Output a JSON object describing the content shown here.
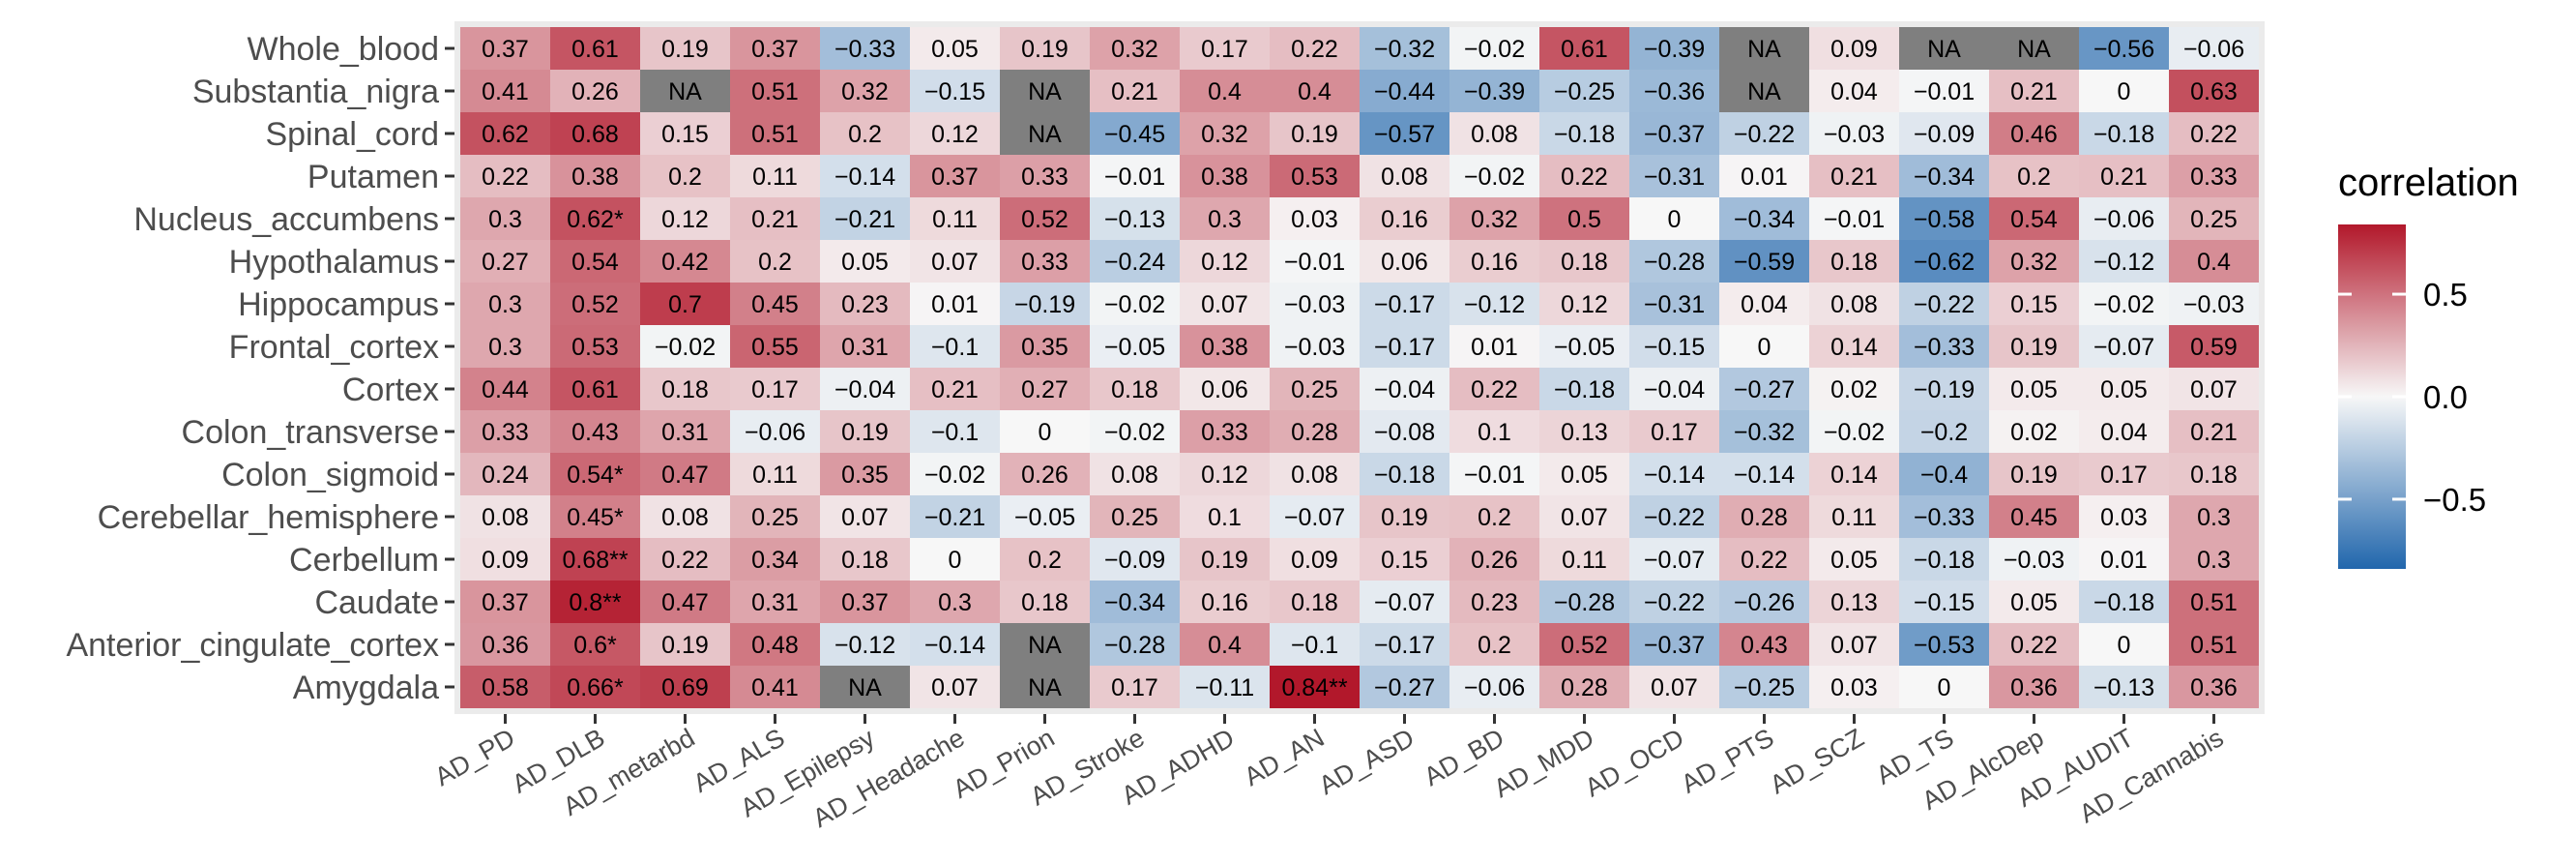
{
  "chart_data": {
    "type": "heatmap",
    "title": "",
    "xlabel": "",
    "ylabel": "",
    "x_categories": [
      "AD_PD",
      "AD_DLB",
      "AD_metarbd",
      "AD_ALS",
      "AD_Epilepsy",
      "AD_Headache",
      "AD_Prion",
      "AD_Stroke",
      "AD_ADHD",
      "AD_AN",
      "AD_ASD",
      "AD_BD",
      "AD_MDD",
      "AD_OCD",
      "AD_PTS",
      "AD_SCZ",
      "AD_TS",
      "AD_AlcDep",
      "AD_AUDIT",
      "AD_Cannabis"
    ],
    "y_categories": [
      "Whole_blood",
      "Substantia_nigra",
      "Spinal_cord",
      "Putamen",
      "Nucleus_accumbens",
      "Hypothalamus",
      "Hippocampus",
      "Frontal_cortex",
      "Cortex",
      "Colon_transverse",
      "Colon_sigmoid",
      "Cerebellar_hemisphere",
      "Cerbellum",
      "Caudate",
      "Anterior_cingulate_cortex",
      "Amygdala"
    ],
    "values": [
      [
        0.37,
        0.61,
        0.19,
        0.37,
        -0.33,
        0.05,
        0.19,
        0.32,
        0.17,
        0.22,
        -0.32,
        -0.02,
        0.61,
        -0.39,
        null,
        0.09,
        null,
        null,
        -0.56,
        -0.06
      ],
      [
        0.41,
        0.26,
        null,
        0.51,
        0.32,
        -0.15,
        null,
        0.21,
        0.4,
        0.4,
        -0.44,
        -0.39,
        -0.25,
        -0.36,
        null,
        0.04,
        -0.01,
        0.21,
        0,
        0.63
      ],
      [
        0.62,
        0.68,
        0.15,
        0.51,
        0.2,
        0.12,
        null,
        -0.45,
        0.32,
        0.19,
        -0.57,
        0.08,
        -0.18,
        -0.37,
        -0.22,
        -0.03,
        -0.09,
        0.46,
        -0.18,
        0.22
      ],
      [
        0.22,
        0.38,
        0.2,
        0.11,
        -0.14,
        0.37,
        0.33,
        -0.01,
        0.38,
        0.53,
        0.08,
        -0.02,
        0.22,
        -0.31,
        0.01,
        0.21,
        -0.34,
        0.2,
        0.21,
        0.33
      ],
      [
        0.3,
        0.62,
        0.12,
        0.21,
        -0.21,
        0.11,
        0.52,
        -0.13,
        0.3,
        0.03,
        0.16,
        0.32,
        0.5,
        0,
        -0.34,
        -0.01,
        -0.58,
        0.54,
        -0.06,
        0.25
      ],
      [
        0.27,
        0.54,
        0.42,
        0.2,
        0.05,
        0.07,
        0.33,
        -0.24,
        0.12,
        -0.01,
        0.06,
        0.16,
        0.18,
        -0.28,
        -0.59,
        0.18,
        -0.62,
        0.32,
        -0.12,
        0.4
      ],
      [
        0.3,
        0.52,
        0.7,
        0.45,
        0.23,
        0.01,
        -0.19,
        -0.02,
        0.07,
        -0.03,
        -0.17,
        -0.12,
        0.12,
        -0.31,
        0.04,
        0.08,
        -0.22,
        0.15,
        -0.02,
        -0.03
      ],
      [
        0.3,
        0.53,
        -0.02,
        0.55,
        0.31,
        -0.1,
        0.35,
        -0.05,
        0.38,
        -0.03,
        -0.17,
        0.01,
        -0.05,
        -0.15,
        0,
        0.14,
        -0.33,
        0.19,
        -0.07,
        0.59
      ],
      [
        0.44,
        0.61,
        0.18,
        0.17,
        -0.04,
        0.21,
        0.27,
        0.18,
        0.06,
        0.25,
        -0.04,
        0.22,
        -0.18,
        -0.04,
        -0.27,
        0.02,
        -0.19,
        0.05,
        0.05,
        0.07
      ],
      [
        0.33,
        0.43,
        0.31,
        -0.06,
        0.19,
        -0.1,
        0,
        -0.02,
        0.33,
        0.28,
        -0.08,
        0.1,
        0.13,
        0.17,
        -0.32,
        -0.02,
        -0.2,
        0.02,
        0.04,
        0.21
      ],
      [
        0.24,
        0.54,
        0.47,
        0.11,
        0.35,
        -0.02,
        0.26,
        0.08,
        0.12,
        0.08,
        -0.18,
        -0.01,
        0.05,
        -0.14,
        -0.14,
        0.14,
        -0.4,
        0.19,
        0.17,
        0.18
      ],
      [
        0.08,
        0.45,
        0.08,
        0.25,
        0.07,
        -0.21,
        -0.05,
        0.25,
        0.1,
        -0.07,
        0.19,
        0.2,
        0.07,
        -0.22,
        0.28,
        0.11,
        -0.33,
        0.45,
        0.03,
        0.3
      ],
      [
        0.09,
        0.68,
        0.22,
        0.34,
        0.18,
        0,
        0.2,
        -0.09,
        0.19,
        0.09,
        0.15,
        0.26,
        0.11,
        -0.07,
        0.22,
        0.05,
        -0.18,
        -0.03,
        0.01,
        0.3
      ],
      [
        0.37,
        0.8,
        0.47,
        0.31,
        0.37,
        0.3,
        0.18,
        -0.34,
        0.16,
        0.18,
        -0.07,
        0.23,
        -0.28,
        -0.22,
        -0.26,
        0.13,
        -0.15,
        0.05,
        -0.18,
        0.51
      ],
      [
        0.36,
        0.6,
        0.19,
        0.48,
        -0.12,
        -0.14,
        null,
        -0.28,
        0.4,
        -0.1,
        -0.17,
        0.2,
        0.52,
        -0.37,
        0.43,
        0.07,
        -0.53,
        0.22,
        0,
        0.51
      ],
      [
        0.58,
        0.66,
        0.69,
        0.41,
        null,
        0.07,
        null,
        0.17,
        -0.11,
        0.84,
        -0.27,
        -0.06,
        0.28,
        0.07,
        -0.25,
        0.03,
        0,
        0.36,
        -0.13,
        0.36
      ]
    ],
    "cell_labels": [
      [
        "0.37",
        "0.61",
        "0.19",
        "0.37",
        "−0.33",
        "0.05",
        "0.19",
        "0.32",
        "0.17",
        "0.22",
        "−0.32",
        "−0.02",
        "0.61",
        "−0.39",
        "NA",
        "0.09",
        "NA",
        "NA",
        "−0.56",
        "−0.06"
      ],
      [
        "0.41",
        "0.26",
        "NA",
        "0.51",
        "0.32",
        "−0.15",
        "NA",
        "0.21",
        "0.4",
        "0.4",
        "−0.44",
        "−0.39",
        "−0.25",
        "−0.36",
        "NA",
        "0.04",
        "−0.01",
        "0.21",
        "0",
        "0.63"
      ],
      [
        "0.62",
        "0.68",
        "0.15",
        "0.51",
        "0.2",
        "0.12",
        "NA",
        "−0.45",
        "0.32",
        "0.19",
        "−0.57",
        "0.08",
        "−0.18",
        "−0.37",
        "−0.22",
        "−0.03",
        "−0.09",
        "0.46",
        "−0.18",
        "0.22"
      ],
      [
        "0.22",
        "0.38",
        "0.2",
        "0.11",
        "−0.14",
        "0.37",
        "0.33",
        "−0.01",
        "0.38",
        "0.53",
        "0.08",
        "−0.02",
        "0.22",
        "−0.31",
        "0.01",
        "0.21",
        "−0.34",
        "0.2",
        "0.21",
        "0.33"
      ],
      [
        "0.3",
        "0.62*",
        "0.12",
        "0.21",
        "−0.21",
        "0.11",
        "0.52",
        "−0.13",
        "0.3",
        "0.03",
        "0.16",
        "0.32",
        "0.5",
        "0",
        "−0.34",
        "−0.01",
        "−0.58",
        "0.54",
        "−0.06",
        "0.25"
      ],
      [
        "0.27",
        "0.54",
        "0.42",
        "0.2",
        "0.05",
        "0.07",
        "0.33",
        "−0.24",
        "0.12",
        "−0.01",
        "0.06",
        "0.16",
        "0.18",
        "−0.28",
        "−0.59",
        "0.18",
        "−0.62",
        "0.32",
        "−0.12",
        "0.4"
      ],
      [
        "0.3",
        "0.52",
        "0.7",
        "0.45",
        "0.23",
        "0.01",
        "−0.19",
        "−0.02",
        "0.07",
        "−0.03",
        "−0.17",
        "−0.12",
        "0.12",
        "−0.31",
        "0.04",
        "0.08",
        "−0.22",
        "0.15",
        "−0.02",
        "−0.03"
      ],
      [
        "0.3",
        "0.53",
        "−0.02",
        "0.55",
        "0.31",
        "−0.1",
        "0.35",
        "−0.05",
        "0.38",
        "−0.03",
        "−0.17",
        "0.01",
        "−0.05",
        "−0.15",
        "0",
        "0.14",
        "−0.33",
        "0.19",
        "−0.07",
        "0.59"
      ],
      [
        "0.44",
        "0.61",
        "0.18",
        "0.17",
        "−0.04",
        "0.21",
        "0.27",
        "0.18",
        "0.06",
        "0.25",
        "−0.04",
        "0.22",
        "−0.18",
        "−0.04",
        "−0.27",
        "0.02",
        "−0.19",
        "0.05",
        "0.05",
        "0.07"
      ],
      [
        "0.33",
        "0.43",
        "0.31",
        "−0.06",
        "0.19",
        "−0.1",
        "0",
        "−0.02",
        "0.33",
        "0.28",
        "−0.08",
        "0.1",
        "0.13",
        "0.17",
        "−0.32",
        "−0.02",
        "−0.2",
        "0.02",
        "0.04",
        "0.21"
      ],
      [
        "0.24",
        "0.54*",
        "0.47",
        "0.11",
        "0.35",
        "−0.02",
        "0.26",
        "0.08",
        "0.12",
        "0.08",
        "−0.18",
        "−0.01",
        "0.05",
        "−0.14",
        "−0.14",
        "0.14",
        "−0.4",
        "0.19",
        "0.17",
        "0.18"
      ],
      [
        "0.08",
        "0.45*",
        "0.08",
        "0.25",
        "0.07",
        "−0.21",
        "−0.05",
        "0.25",
        "0.1",
        "−0.07",
        "0.19",
        "0.2",
        "0.07",
        "−0.22",
        "0.28",
        "0.11",
        "−0.33",
        "0.45",
        "0.03",
        "0.3"
      ],
      [
        "0.09",
        "0.68**",
        "0.22",
        "0.34",
        "0.18",
        "0",
        "0.2",
        "−0.09",
        "0.19",
        "0.09",
        "0.15",
        "0.26",
        "0.11",
        "−0.07",
        "0.22",
        "0.05",
        "−0.18",
        "−0.03",
        "0.01",
        "0.3"
      ],
      [
        "0.37",
        "0.8**",
        "0.47",
        "0.31",
        "0.37",
        "0.3",
        "0.18",
        "−0.34",
        "0.16",
        "0.18",
        "−0.07",
        "0.23",
        "−0.28",
        "−0.22",
        "−0.26",
        "0.13",
        "−0.15",
        "0.05",
        "−0.18",
        "0.51"
      ],
      [
        "0.36",
        "0.6*",
        "0.19",
        "0.48",
        "−0.12",
        "−0.14",
        "NA",
        "−0.28",
        "0.4",
        "−0.1",
        "−0.17",
        "0.2",
        "0.52",
        "−0.37",
        "0.43",
        "0.07",
        "−0.53",
        "0.22",
        "0",
        "0.51"
      ],
      [
        "0.58",
        "0.66*",
        "0.69",
        "0.41",
        "NA",
        "0.07",
        "NA",
        "0.17",
        "−0.11",
        "0.84**",
        "−0.27",
        "−0.06",
        "0.28",
        "0.07",
        "−0.25",
        "0.03",
        "0",
        "0.36",
        "−0.13",
        "0.36"
      ]
    ],
    "na_label": "NA",
    "na_color": "#7f7f7f",
    "color_scale": {
      "type": "diverging",
      "limits": [
        -0.84,
        0.84
      ],
      "low_color": "#2166ac",
      "mid_color": "#f7f7f7",
      "high_color": "#b2182b"
    },
    "legend": {
      "title": "correlation",
      "placement": "right",
      "ticks": [
        {
          "value": 0.5,
          "label": "0.5"
        },
        {
          "value": 0.0,
          "label": "0.0"
        },
        {
          "value": -0.5,
          "label": "−0.5"
        }
      ]
    },
    "panel_background": "#ebebeb",
    "grid": false
  }
}
